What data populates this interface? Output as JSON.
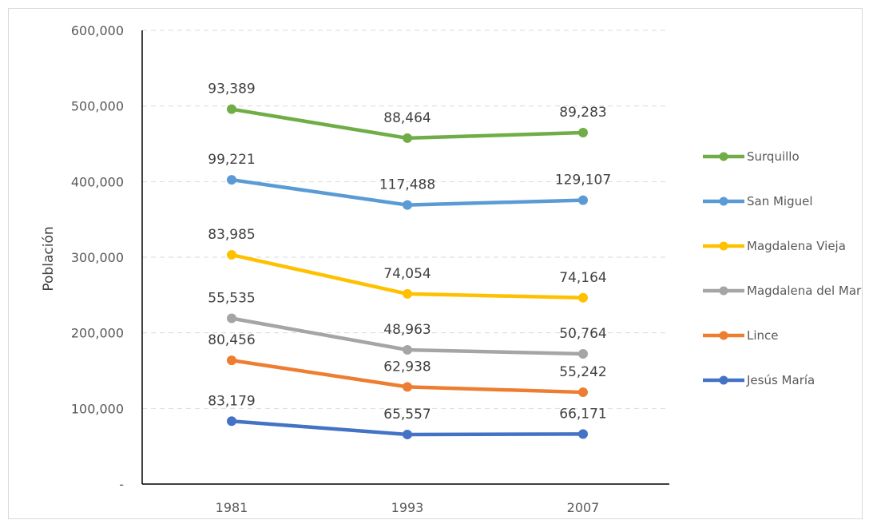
{
  "chart_data": {
    "type": "line",
    "title": "",
    "xlabel": "",
    "ylabel": "Población",
    "categories": [
      "1981",
      "1993",
      "2007"
    ],
    "ylim": [
      0,
      600000
    ],
    "y_ticks": [
      0,
      100000,
      200000,
      300000,
      400000,
      500000,
      600000
    ],
    "y_tick_labels": [
      "-",
      "100,000",
      "200,000",
      "300,000",
      "400,000",
      "500,000",
      "600,000"
    ],
    "grid": "horizontal dashed",
    "legend_position": "right",
    "stacked": true,
    "series": [
      {
        "name": "Jesús María",
        "color": "#4472c4",
        "values": [
          83179,
          65557,
          66171
        ],
        "labels": [
          "83,179",
          "65,557",
          "66,171"
        ]
      },
      {
        "name": "Lince",
        "color": "#ed7d31",
        "values": [
          80456,
          62938,
          55242
        ],
        "labels": [
          "80,456",
          "62,938",
          "55,242"
        ]
      },
      {
        "name": "Magdalena del Mar",
        "color": "#a5a5a5",
        "values": [
          55535,
          48963,
          50764
        ],
        "labels": [
          "55,535",
          "48,963",
          "50,764"
        ]
      },
      {
        "name": "Magdalena Vieja",
        "color": "#ffc000",
        "values": [
          83985,
          74054,
          74164
        ],
        "labels": [
          "83,985",
          "74,054",
          "74,164"
        ]
      },
      {
        "name": "San Miguel",
        "color": "#5b9bd5",
        "values": [
          99221,
          117488,
          129107
        ],
        "labels": [
          "99,221",
          "117,488",
          "129,107"
        ]
      },
      {
        "name": "Surquillo",
        "color": "#70ad47",
        "values": [
          93389,
          88464,
          89283
        ],
        "labels": [
          "93,389",
          "88,464",
          "89,283"
        ]
      }
    ]
  }
}
